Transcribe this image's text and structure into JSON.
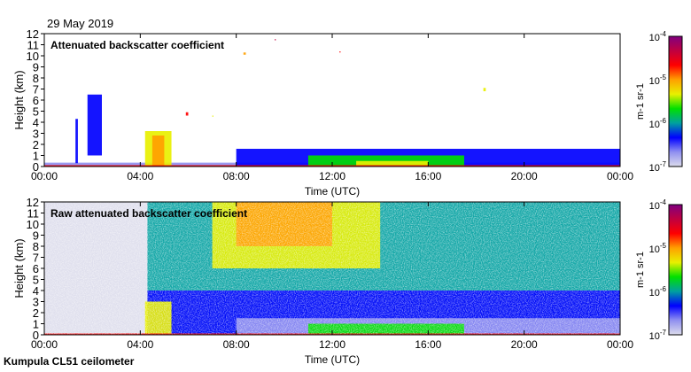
{
  "header": {
    "date": "29 May 2019"
  },
  "footer": {
    "instrument": "Kumpula CL51 ceilometer"
  },
  "colormap": [
    "#dcdcec",
    "#9090f0",
    "#0000ff",
    "#00a0a0",
    "#00e000",
    "#e8f000",
    "#ffa000",
    "#ff0000",
    "#c00040",
    "#800080"
  ],
  "chart_data": [
    {
      "type": "heatmap",
      "title": "Attenuated backscatter coefficient",
      "xlabel": "Time (UTC)",
      "ylabel": "Height (km)",
      "xlim": [
        0,
        24
      ],
      "ylim": [
        0,
        12
      ],
      "xticks": [
        "00:00",
        "04:00",
        "08:00",
        "12:00",
        "16:00",
        "20:00",
        "00:00"
      ],
      "yticks": [
        "0",
        "1",
        "2",
        "3",
        "4",
        "5",
        "6",
        "7",
        "8",
        "9",
        "10",
        "11",
        "12"
      ],
      "colorbar": {
        "label": "m-1 sr-1",
        "ticks": [
          "10-7",
          "10-6",
          "10-5",
          "10-4"
        ],
        "scale": "log",
        "range": [
          1e-07,
          0.0001
        ]
      },
      "features": [
        {
          "t": [
            0,
            24
          ],
          "z": [
            0,
            0.35
          ],
          "level": 0.15
        },
        {
          "t": [
            8,
            24
          ],
          "z": [
            0,
            1.6
          ],
          "level": 0.25
        },
        {
          "t": [
            11,
            17.5
          ],
          "z": [
            0,
            1.0
          ],
          "level": 0.4
        },
        {
          "t": [
            13,
            16
          ],
          "z": [
            0,
            0.5
          ],
          "level": 0.5
        },
        {
          "t": [
            1.3,
            1.4
          ],
          "z": [
            0.3,
            4.3
          ],
          "level": 0.25
        },
        {
          "t": [
            1.8,
            2.4
          ],
          "z": [
            1,
            6.5
          ],
          "level": 0.25
        },
        {
          "t": [
            4.2,
            5.3
          ],
          "z": [
            0,
            3.2
          ],
          "level": 0.55
        },
        {
          "t": [
            4.5,
            5.0
          ],
          "z": [
            0,
            2.8
          ],
          "level": 0.7
        },
        {
          "t": [
            0,
            24
          ],
          "z": [
            0,
            0.12
          ],
          "level": 0.75
        },
        {
          "t": [
            5.9,
            6.0
          ],
          "z": [
            4.6,
            4.9
          ],
          "level": 0.75
        },
        {
          "t": [
            7.0,
            7.05
          ],
          "z": [
            4.5,
            4.6
          ],
          "level": 0.5
        },
        {
          "t": [
            8.3,
            8.4
          ],
          "z": [
            10.1,
            10.3
          ],
          "level": 0.7
        },
        {
          "t": [
            9.6,
            9.65
          ],
          "z": [
            11.4,
            11.5
          ],
          "level": 0.85
        },
        {
          "t": [
            18.3,
            18.4
          ],
          "z": [
            6.8,
            7.1
          ],
          "level": 0.5
        },
        {
          "t": [
            12.3,
            12.35
          ],
          "z": [
            10.3,
            10.4
          ],
          "level": 0.75
        }
      ]
    },
    {
      "type": "heatmap",
      "title": "Raw attenuated backscatter coefficient",
      "xlabel": "Time (UTC)",
      "ylabel": "Height (km)",
      "xlim": [
        0,
        24
      ],
      "ylim": [
        0,
        12
      ],
      "xticks": [
        "00:00",
        "04:00",
        "08:00",
        "12:00",
        "16:00",
        "20:00",
        "00:00"
      ],
      "yticks": [
        "0",
        "1",
        "2",
        "3",
        "4",
        "5",
        "6",
        "7",
        "8",
        "9",
        "10",
        "11",
        "12"
      ],
      "colorbar": {
        "label": "m-1 sr-1",
        "ticks": [
          "10-7",
          "10-6",
          "10-5",
          "10-4"
        ],
        "scale": "log",
        "range": [
          1e-07,
          0.0001
        ]
      },
      "features": [
        {
          "t": [
            0,
            4.3
          ],
          "z": [
            0,
            12
          ],
          "level": 0.05
        },
        {
          "t": [
            4.3,
            24
          ],
          "z": [
            0,
            12
          ],
          "level": 0.35
        },
        {
          "t": [
            4.3,
            24
          ],
          "z": [
            0,
            4
          ],
          "level": 0.2
        },
        {
          "t": [
            7,
            14
          ],
          "z": [
            6,
            12
          ],
          "level": 0.55
        },
        {
          "t": [
            8,
            12
          ],
          "z": [
            8,
            12
          ],
          "level": 0.65
        },
        {
          "t": [
            8,
            24
          ],
          "z": [
            0,
            1.5
          ],
          "level": 0.15
        },
        {
          "t": [
            11,
            17.5
          ],
          "z": [
            0,
            1.0
          ],
          "level": 0.4
        },
        {
          "t": [
            4.2,
            5.3
          ],
          "z": [
            0,
            3
          ],
          "level": 0.6
        },
        {
          "t": [
            0,
            24
          ],
          "z": [
            0,
            0.12
          ],
          "level": 0.75
        }
      ]
    }
  ]
}
